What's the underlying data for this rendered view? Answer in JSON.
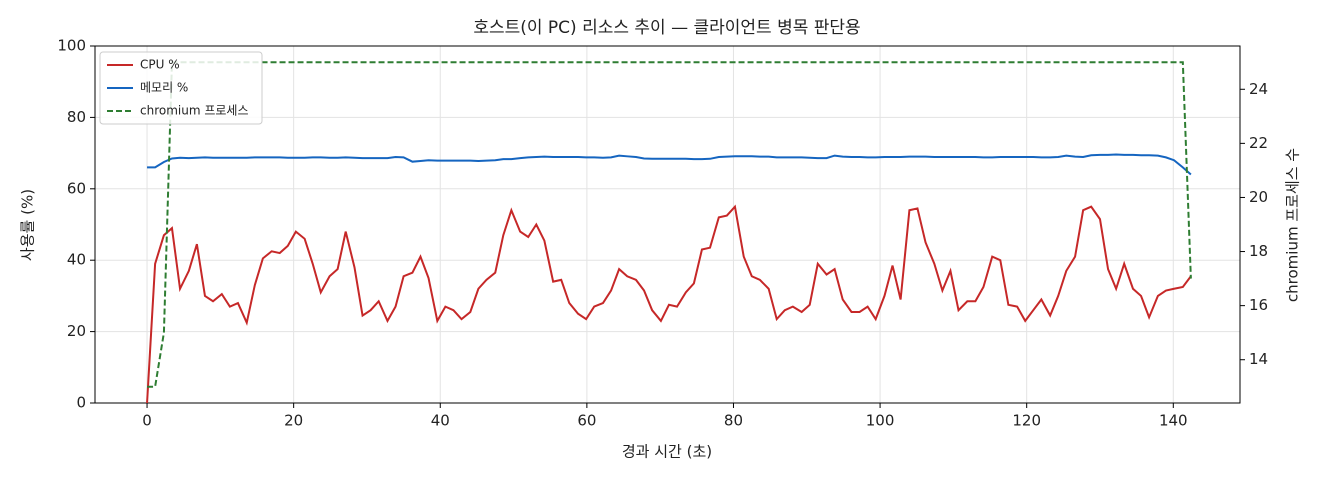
{
  "chart_data": {
    "type": "line",
    "title": "호스트(이 PC) 리소스 추이 — 클라이언트 병목 판단용",
    "xlabel": "경과 시간 (초)",
    "ylabel": "사용률 (%)",
    "y2label": "chromium 프로세스 수",
    "x": [
      0,
      1.1,
      2.3,
      3.4,
      4.5,
      5.7,
      6.8,
      7.9,
      9.0,
      10.2,
      11.3,
      12.4,
      13.6,
      14.7,
      15.8,
      17.0,
      18.1,
      19.2,
      20.3,
      21.5,
      22.6,
      23.7,
      24.9,
      26.0,
      27.1,
      28.3,
      29.4,
      30.5,
      31.6,
      32.8,
      33.9,
      35.0,
      36.2,
      37.3,
      38.4,
      39.6,
      40.7,
      41.8,
      42.9,
      44.1,
      45.2,
      46.3,
      47.5,
      48.6,
      49.7,
      50.9,
      52.0,
      53.1,
      54.2,
      55.4,
      56.5,
      57.6,
      58.8,
      59.9,
      61.0,
      62.2,
      63.3,
      64.4,
      65.5,
      66.7,
      67.8,
      68.9,
      70.1,
      71.2,
      72.3,
      73.5,
      74.6,
      75.7,
      76.8,
      78.0,
      79.1,
      80.2,
      81.4,
      82.5,
      83.6,
      84.8,
      85.9,
      87.0,
      88.1,
      89.3,
      90.4,
      91.5,
      92.7,
      93.8,
      94.9,
      96.1,
      97.2,
      98.3,
      99.4,
      100.6,
      101.7,
      102.8,
      104.0,
      105.1,
      106.2,
      107.4,
      108.5,
      109.6,
      110.7,
      111.9,
      113.0,
      114.1,
      115.3,
      116.4,
      117.5,
      118.7,
      119.8,
      120.9,
      122.0,
      123.2,
      124.3,
      125.4,
      126.6,
      127.7,
      128.8,
      130.0,
      131.1,
      132.2,
      133.3,
      134.5,
      135.6,
      136.7,
      137.9,
      139.0,
      140.1,
      141.3,
      142.4
    ],
    "series": [
      {
        "name": "CPU %",
        "color": "#c62828",
        "axis": "y",
        "style": "solid",
        "values": [
          0,
          39,
          47,
          49,
          32,
          37,
          44.5,
          30,
          28.5,
          30.5,
          27,
          28,
          22.5,
          33,
          40.5,
          42.5,
          42,
          44,
          48,
          46,
          39,
          31,
          35.5,
          37.5,
          48,
          38,
          24.5,
          26,
          28.5,
          23,
          27,
          35.5,
          36.5,
          41,
          35,
          23,
          27,
          26,
          23.5,
          25.5,
          32,
          34.5,
          36.5,
          47,
          54,
          48,
          46.5,
          50,
          45.5,
          34,
          34.5,
          28,
          25,
          23.5,
          27,
          28,
          31.5,
          37.5,
          35.5,
          34.5,
          31.5,
          26,
          23,
          27.5,
          27,
          31,
          33.5,
          43,
          43.5,
          52,
          52.5,
          55,
          41,
          35.5,
          34.5,
          32,
          23.5,
          26,
          27,
          25.5,
          27.5,
          39,
          36,
          37.5,
          29,
          25.5,
          25.5,
          27,
          23.5,
          30,
          38.5,
          29,
          54,
          54.5,
          45,
          39,
          31.5,
          37,
          26,
          28.5,
          28.5,
          32.5,
          41,
          40,
          27.5,
          27,
          23,
          26,
          29,
          24.5,
          30,
          37,
          41,
          54,
          55,
          51.5,
          37.5,
          32,
          39,
          32,
          30,
          24,
          30,
          31.5,
          32,
          32.5,
          35.5
        ]
      },
      {
        "name": "메모리 %",
        "color": "#1565c0",
        "axis": "y",
        "style": "solid",
        "values": [
          66,
          66,
          67.5,
          68.5,
          68.7,
          68.6,
          68.7,
          68.8,
          68.7,
          68.7,
          68.7,
          68.7,
          68.7,
          68.8,
          68.8,
          68.8,
          68.8,
          68.7,
          68.7,
          68.7,
          68.8,
          68.8,
          68.7,
          68.7,
          68.8,
          68.7,
          68.6,
          68.6,
          68.6,
          68.6,
          68.9,
          68.8,
          67.6,
          67.8,
          68.0,
          67.9,
          67.9,
          67.9,
          67.9,
          67.9,
          67.8,
          67.9,
          68.0,
          68.3,
          68.3,
          68.6,
          68.8,
          68.9,
          69.0,
          68.9,
          68.9,
          68.9,
          68.9,
          68.8,
          68.8,
          68.7,
          68.8,
          69.3,
          69.1,
          68.9,
          68.5,
          68.4,
          68.4,
          68.4,
          68.4,
          68.4,
          68.3,
          68.3,
          68.4,
          68.9,
          69.0,
          69.1,
          69.1,
          69.1,
          69.0,
          69.0,
          68.8,
          68.8,
          68.8,
          68.8,
          68.7,
          68.6,
          68.6,
          69.3,
          69.0,
          68.9,
          68.9,
          68.8,
          68.8,
          68.9,
          68.9,
          68.9,
          69.0,
          69.0,
          69.0,
          68.9,
          68.9,
          68.9,
          68.9,
          68.9,
          68.9,
          68.8,
          68.8,
          68.9,
          68.9,
          68.9,
          68.9,
          68.9,
          68.8,
          68.8,
          68.9,
          69.3,
          69.0,
          68.9,
          69.4,
          69.5,
          69.5,
          69.6,
          69.5,
          69.5,
          69.4,
          69.4,
          69.3,
          68.8,
          68.0,
          66.0,
          64.0
        ]
      },
      {
        "name": "chromium 프로세스",
        "color": "#2e7d32",
        "axis": "y2",
        "style": "dashed",
        "values": [
          13,
          13,
          15,
          25,
          25,
          25,
          25,
          25,
          25,
          25,
          25,
          25,
          25,
          25,
          25,
          25,
          25,
          25,
          25,
          25,
          25,
          25,
          25,
          25,
          25,
          25,
          25,
          25,
          25,
          25,
          25,
          25,
          25,
          25,
          25,
          25,
          25,
          25,
          25,
          25,
          25,
          25,
          25,
          25,
          25,
          25,
          25,
          25,
          25,
          25,
          25,
          25,
          25,
          25,
          25,
          25,
          25,
          25,
          25,
          25,
          25,
          25,
          25,
          25,
          25,
          25,
          25,
          25,
          25,
          25,
          25,
          25,
          25,
          25,
          25,
          25,
          25,
          25,
          25,
          25,
          25,
          25,
          25,
          25,
          25,
          25,
          25,
          25,
          25,
          25,
          25,
          25,
          25,
          25,
          25,
          25,
          25,
          25,
          25,
          25,
          25,
          25,
          25,
          25,
          25,
          25,
          25,
          25,
          25,
          25,
          25,
          25,
          25,
          25,
          25,
          25,
          25,
          25,
          25,
          25,
          25,
          25,
          25,
          25,
          25,
          25,
          17
        ]
      }
    ],
    "xlim": [
      -7.1,
      149.1
    ],
    "xticks": [
      0,
      20,
      40,
      60,
      80,
      100,
      120,
      140
    ],
    "ylim": [
      0,
      100
    ],
    "yticks": [
      0,
      20,
      40,
      60,
      80,
      100
    ],
    "y2lim": [
      12.4,
      25.6
    ],
    "y2ticks": [
      14,
      16,
      18,
      20,
      22,
      24
    ],
    "grid": true,
    "legend": "upper left"
  }
}
